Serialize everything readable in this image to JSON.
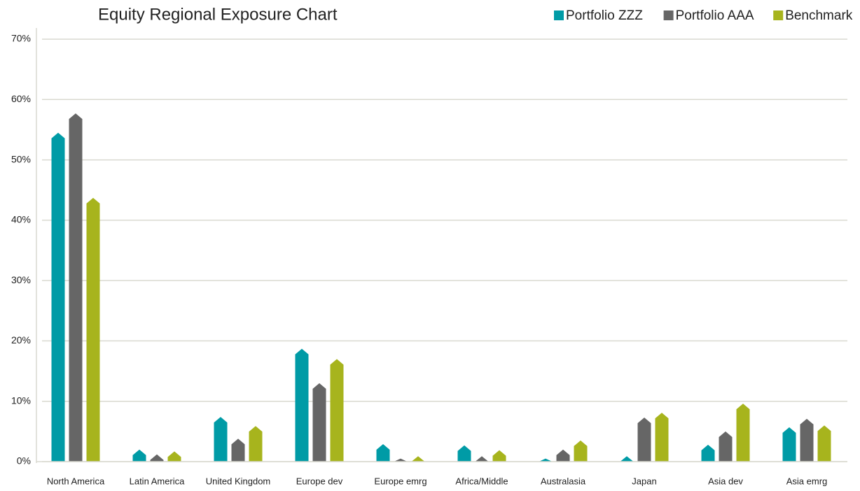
{
  "chart_data": {
    "type": "bar",
    "title": "Equity Regional Exposure Chart",
    "categories": [
      "North America",
      "Latin America",
      "United Kingdom",
      "Europe dev",
      "Europe emrg",
      "Africa/Middle",
      "Australasia",
      "Japan",
      "Asia dev",
      "Asia emrg"
    ],
    "series": [
      {
        "name": "Portfolio ZZZ",
        "color": "#009ba6",
        "values": [
          54.5,
          2.0,
          7.4,
          18.7,
          2.9,
          2.7,
          0.5,
          0.9,
          2.8,
          5.7
        ]
      },
      {
        "name": "Portfolio AAA",
        "color": "#666666",
        "values": [
          57.7,
          1.2,
          3.8,
          13.0,
          0.5,
          0.9,
          2.0,
          7.3,
          5.0,
          7.1
        ]
      },
      {
        "name": "Benchmark",
        "color": "#a7b41d",
        "values": [
          43.7,
          1.7,
          5.9,
          17.0,
          0.9,
          1.9,
          3.5,
          8.1,
          9.6,
          6.0
        ]
      }
    ],
    "ylim": [
      0,
      70
    ],
    "yticks": [
      {
        "value": 0,
        "label": "0%"
      },
      {
        "value": 10,
        "label": "10%"
      },
      {
        "value": 20,
        "label": "20%"
      },
      {
        "value": 30,
        "label": "30%"
      },
      {
        "value": 40,
        "label": "40%"
      },
      {
        "value": 50,
        "label": "50%"
      },
      {
        "value": 60,
        "label": "60%"
      },
      {
        "value": 70,
        "label": "70%"
      }
    ],
    "grid": true,
    "legend": "top-right"
  }
}
